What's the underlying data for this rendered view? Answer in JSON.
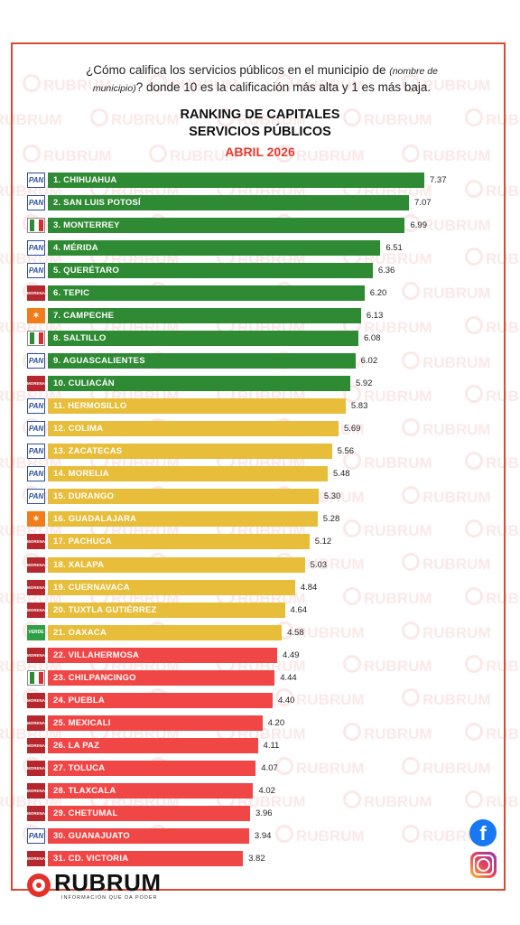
{
  "question": {
    "pre": "¿Cómo califica los servicios públicos en el municipio de ",
    "italic_1": "(nombre de",
    "italic_2": "municipio)",
    "post": "? donde 10 es la calificación más alta y 1 es más baja."
  },
  "title_1": "RANKING DE CAPITALES",
  "title_2": "SERVICIOS PÚBLICOS",
  "date": "ABRIL 2026",
  "watermark": "RUBRUM",
  "brand": {
    "name": "RUBRUM",
    "tagline": "INFORMACIÓN QUE DA PODER"
  },
  "social": {
    "facebook": "f"
  },
  "colors": {
    "green": "#2f8a34",
    "yellow": "#e7bd3a",
    "red": "#f04646",
    "frame": "#d94a2f"
  },
  "parties": {
    "pan": "PAN",
    "pri": "PRI",
    "morena": "MORENA",
    "mc": "MC",
    "verde": "VERDE"
  },
  "chart_data": {
    "type": "bar",
    "orientation": "horizontal",
    "title": "RANKING DE CAPITALES SERVICIOS PÚBLICOS",
    "subtitle": "ABRIL 2026",
    "categories": [
      "1. CHIHUAHUA",
      "2. SAN LUIS POTOSÍ",
      "3. MONTERREY",
      "4. MÉRIDA",
      "5. QUERÉTARO",
      "6. TEPIC",
      "7. CAMPECHE",
      "8. SALTILLO",
      "9. AGUASCALIENTES",
      "10. CULIACÁN",
      "11. HERMOSILLO",
      "12. COLIMA",
      "13. ZACATECAS",
      "14. MORELIA",
      "15. DURANGO",
      "16. GUADALAJARA",
      "17. PACHUCA",
      "18. XALAPA",
      "19. CUERNAVACA",
      "20. TUXTLA GUTIÉRREZ",
      "21. OAXACA",
      "22. VILLAHERMOSA",
      "23. CHILPANCINGO",
      "24. PUEBLA",
      "25. MEXICALI",
      "26. LA PAZ",
      "27. TOLUCA",
      "28. TLAXCALA",
      "29. CHETUMAL",
      "30. GUANAJUATO",
      "31. CD. VICTORIA"
    ],
    "values": [
      7.37,
      7.07,
      6.99,
      6.51,
      6.36,
      6.2,
      6.13,
      6.08,
      6.02,
      5.92,
      5.83,
      5.69,
      5.56,
      5.48,
      5.3,
      5.28,
      5.12,
      5.03,
      4.84,
      4.64,
      4.58,
      4.49,
      4.44,
      4.4,
      4.2,
      4.11,
      4.07,
      4.02,
      3.96,
      3.94,
      3.82
    ],
    "value_labels": [
      "7.37",
      "7.07",
      "6.99",
      "6.51",
      "6.36",
      "6.20",
      "6.13",
      "6.08",
      "6.02",
      "5.92",
      "5.83",
      "5.69",
      "5.56",
      "5.48",
      "5.30",
      "5.28",
      "5.12",
      "5.03",
      "4.84",
      "4.64",
      "4.58",
      "4.49",
      "4.44",
      "4.40",
      "4.20",
      "4.11",
      "4.07",
      "4.02",
      "3.96",
      "3.94",
      "3.82"
    ],
    "bar_colors": [
      "green",
      "green",
      "green",
      "green",
      "green",
      "green",
      "green",
      "green",
      "green",
      "green",
      "yellow",
      "yellow",
      "yellow",
      "yellow",
      "yellow",
      "yellow",
      "yellow",
      "yellow",
      "yellow",
      "yellow",
      "yellow",
      "red",
      "red",
      "red",
      "red",
      "red",
      "red",
      "red",
      "red",
      "red",
      "red"
    ],
    "parties": [
      "pan",
      "pan",
      "pri",
      "pan",
      "pan",
      "morena",
      "mc",
      "pri",
      "pan",
      "morena",
      "pan",
      "pan",
      "pan",
      "pan",
      "pan",
      "mc",
      "morena",
      "morena",
      "morena",
      "morena",
      "verde",
      "morena",
      "pri",
      "morena",
      "morena",
      "morena",
      "morena",
      "morena",
      "morena",
      "pan",
      "morena"
    ],
    "xlim": [
      0,
      7.8
    ],
    "grid": false,
    "legend": "none"
  }
}
